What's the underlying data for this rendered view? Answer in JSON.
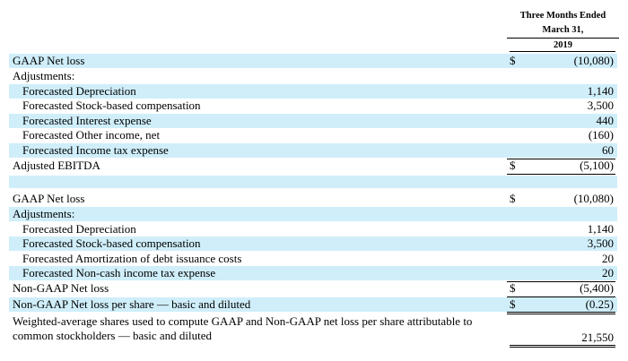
{
  "header": {
    "line1": "Three Months Ended",
    "line2": "March 31,",
    "line3": "2019"
  },
  "section1": [
    {
      "label": "GAAP Net loss",
      "dollar": "$",
      "value": "(10,080)",
      "shaded": true,
      "indent": false
    },
    {
      "label": "Adjustments:",
      "dollar": "",
      "value": "",
      "shaded": false,
      "indent": false
    },
    {
      "label": "Forecasted Depreciation",
      "dollar": "",
      "value": "1,140",
      "shaded": true,
      "indent": true
    },
    {
      "label": "Forecasted Stock-based compensation",
      "dollar": "",
      "value": "3,500",
      "shaded": false,
      "indent": true
    },
    {
      "label": "Forecasted Interest expense",
      "dollar": "",
      "value": "440",
      "shaded": true,
      "indent": true
    },
    {
      "label": "Forecasted Other income, net",
      "dollar": "",
      "value": "(160)",
      "shaded": false,
      "indent": true
    },
    {
      "label": "Forecasted Income tax expense",
      "dollar": "",
      "value": "60",
      "shaded": true,
      "indent": true
    },
    {
      "label": "Adjusted EBITDA",
      "dollar": "$",
      "value": "(5,100)",
      "shaded": false,
      "indent": false
    }
  ],
  "section2": [
    {
      "label": "GAAP Net loss",
      "dollar": "$",
      "value": "(10,080)",
      "shaded": false,
      "indent": false
    },
    {
      "label": "Adjustments:",
      "dollar": "",
      "value": "",
      "shaded": true,
      "indent": false
    },
    {
      "label": "Forecasted Depreciation",
      "dollar": "",
      "value": "1,140",
      "shaded": false,
      "indent": true
    },
    {
      "label": "Forecasted Stock-based compensation",
      "dollar": "",
      "value": "3,500",
      "shaded": true,
      "indent": true
    },
    {
      "label": "Forecasted Amortization of debt issuance costs",
      "dollar": "",
      "value": "20",
      "shaded": false,
      "indent": true
    },
    {
      "label": "Forecasted Non-cash income tax expense",
      "dollar": "",
      "value": "20",
      "shaded": true,
      "indent": true
    },
    {
      "label": "Non-GAAP Net loss",
      "dollar": "$",
      "value": "(5,400)",
      "shaded": false,
      "indent": false
    },
    {
      "label": "Non-GAAP Net loss per share — basic and diluted",
      "dollar": "$",
      "value": "(0.25)",
      "shaded": true,
      "indent": false
    },
    {
      "label": "Weighted-average shares used to compute GAAP and Non-GAAP net loss per share attributable to common stockholders — basic and diluted",
      "dollar": "",
      "value": "21,550",
      "shaded": false,
      "indent": false
    }
  ]
}
